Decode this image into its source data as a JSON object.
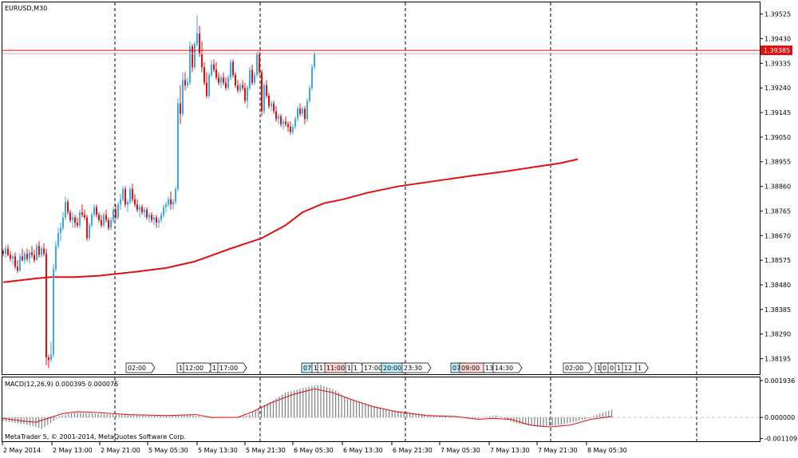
{
  "chart_data": [
    {
      "type": "candlestick",
      "symbol_label": "EURUSD,M30",
      "y_ticks": [
        "1.39525",
        "1.39430",
        "1.39335",
        "1.39240",
        "1.39145",
        "1.39050",
        "1.38955",
        "1.38860",
        "1.38765",
        "1.38670",
        "1.38575",
        "1.38480",
        "1.38385",
        "1.38290",
        "1.38195"
      ],
      "ylim": [
        1.38135,
        1.3957
      ],
      "current_price": "1.39385",
      "current_price_value": 1.39385,
      "colors": {
        "bull": "#3aa9e6",
        "bear": "#e01010",
        "ma": "#e01010",
        "price_line": "#e01010",
        "price_label_bg": "#e01010"
      },
      "session_marker_labels": [
        "02:00",
        "1",
        "12:00",
        "1",
        "17:00",
        "07",
        "1",
        "1",
        "11:00",
        "14",
        "1",
        "17:00",
        "20:00",
        "23:30",
        "07",
        "09:00",
        "13",
        "14:30",
        "02:00",
        "1",
        "0",
        "0",
        "1",
        "12",
        "1",
        "14:30"
      ],
      "candles": [
        [
          1.3861,
          1.3862,
          1.3859,
          1.386
        ],
        [
          1.386,
          1.3863,
          1.38585,
          1.3862
        ],
        [
          1.3862,
          1.38635,
          1.3859,
          1.38595
        ],
        [
          1.38595,
          1.3861,
          1.3857,
          1.3858
        ],
        [
          1.3858,
          1.386,
          1.38555,
          1.3859
        ],
        [
          1.3859,
          1.38605,
          1.3854,
          1.3855
        ],
        [
          1.3855,
          1.38575,
          1.38525,
          1.38535
        ],
        [
          1.38535,
          1.386,
          1.3853,
          1.3859
        ],
        [
          1.3859,
          1.3862,
          1.3857,
          1.38575
        ],
        [
          1.38575,
          1.3861,
          1.3856,
          1.386
        ],
        [
          1.386,
          1.3862,
          1.3857,
          1.3858
        ],
        [
          1.3858,
          1.38615,
          1.3856,
          1.38605
        ],
        [
          1.38605,
          1.3863,
          1.38585,
          1.38595
        ],
        [
          1.38595,
          1.38615,
          1.38565,
          1.38575
        ],
        [
          1.38575,
          1.3864,
          1.38575,
          1.3863
        ],
        [
          1.3863,
          1.3865,
          1.38585,
          1.38595
        ],
        [
          1.38595,
          1.3863,
          1.38585,
          1.3862
        ],
        [
          1.3862,
          1.3864,
          1.3859,
          1.386
        ],
        [
          1.386,
          1.3862,
          1.3817,
          1.382
        ],
        [
          1.382,
          1.3821,
          1.3816,
          1.3819
        ],
        [
          1.3819,
          1.3826,
          1.3818,
          1.3821
        ],
        [
          1.3821,
          1.3856,
          1.382,
          1.3854
        ],
        [
          1.3854,
          1.3865,
          1.3853,
          1.3863
        ],
        [
          1.3863,
          1.387,
          1.3862,
          1.3868
        ],
        [
          1.3868,
          1.3872,
          1.3865,
          1.387
        ],
        [
          1.387,
          1.3876,
          1.3869,
          1.3874
        ],
        [
          1.3874,
          1.3882,
          1.3873,
          1.388
        ],
        [
          1.388,
          1.3881,
          1.3875,
          1.3876
        ],
        [
          1.3876,
          1.3877,
          1.3872,
          1.3873
        ],
        [
          1.3873,
          1.3876,
          1.387,
          1.3874
        ],
        [
          1.3874,
          1.3875,
          1.387,
          1.3872
        ],
        [
          1.3872,
          1.3874,
          1.387,
          1.3871
        ],
        [
          1.3871,
          1.3877,
          1.387,
          1.3876
        ],
        [
          1.3876,
          1.3879,
          1.3874,
          1.3875
        ],
        [
          1.3875,
          1.3877,
          1.3873,
          1.3874
        ],
        [
          1.3874,
          1.3875,
          1.3865,
          1.3866
        ],
        [
          1.3866,
          1.3872,
          1.3865,
          1.3871
        ],
        [
          1.3871,
          1.3876,
          1.387,
          1.3875
        ],
        [
          1.3875,
          1.3879,
          1.3874,
          1.3878
        ],
        [
          1.3878,
          1.3879,
          1.3874,
          1.3875
        ],
        [
          1.3875,
          1.3876,
          1.3872,
          1.3873
        ],
        [
          1.3873,
          1.3875,
          1.387,
          1.3871
        ],
        [
          1.3871,
          1.3876,
          1.387,
          1.3875
        ],
        [
          1.3875,
          1.3877,
          1.3872,
          1.3873
        ],
        [
          1.3873,
          1.3874,
          1.3869,
          1.387
        ],
        [
          1.387,
          1.3874,
          1.3869,
          1.3873
        ],
        [
          1.3873,
          1.3878,
          1.3872,
          1.3877
        ],
        [
          1.3877,
          1.3879,
          1.3873,
          1.3874
        ],
        [
          1.3874,
          1.388,
          1.3873,
          1.3879
        ],
        [
          1.3879,
          1.3883,
          1.3877,
          1.3881
        ],
        [
          1.3881,
          1.3886,
          1.388,
          1.3885
        ],
        [
          1.3885,
          1.3886,
          1.3878,
          1.3879
        ],
        [
          1.3879,
          1.3881,
          1.3876,
          1.388
        ],
        [
          1.388,
          1.3886,
          1.3879,
          1.3885
        ],
        [
          1.3885,
          1.3887,
          1.388,
          1.3881
        ],
        [
          1.3881,
          1.3883,
          1.3878,
          1.3879
        ],
        [
          1.3879,
          1.3881,
          1.3876,
          1.3877
        ],
        [
          1.3877,
          1.3879,
          1.3874,
          1.3878
        ],
        [
          1.3878,
          1.3879,
          1.3875,
          1.3876
        ],
        [
          1.3876,
          1.3878,
          1.3874,
          1.3877
        ],
        [
          1.3877,
          1.3878,
          1.3873,
          1.3874
        ],
        [
          1.3874,
          1.3876,
          1.3872,
          1.3875
        ],
        [
          1.3875,
          1.3876,
          1.3872,
          1.3873
        ],
        [
          1.3873,
          1.3875,
          1.3871,
          1.3874
        ],
        [
          1.3874,
          1.3875,
          1.387,
          1.3872
        ],
        [
          1.3872,
          1.3874,
          1.387,
          1.3873
        ],
        [
          1.3873,
          1.3876,
          1.3872,
          1.3875
        ],
        [
          1.3875,
          1.3879,
          1.3874,
          1.3878
        ],
        [
          1.3878,
          1.388,
          1.3876,
          1.3879
        ],
        [
          1.3879,
          1.3882,
          1.3878,
          1.3881
        ],
        [
          1.3881,
          1.3884,
          1.3877,
          1.3879
        ],
        [
          1.3879,
          1.3881,
          1.3877,
          1.388
        ],
        [
          1.388,
          1.3886,
          1.3879,
          1.3885
        ],
        [
          1.3885,
          1.392,
          1.3884,
          1.3918
        ],
        [
          1.3918,
          1.3925,
          1.391,
          1.3914
        ],
        [
          1.3914,
          1.393,
          1.3913,
          1.3927
        ],
        [
          1.3927,
          1.393,
          1.3923,
          1.3925
        ],
        [
          1.3925,
          1.3928,
          1.3924,
          1.3926
        ],
        [
          1.3926,
          1.3942,
          1.3925,
          1.394
        ],
        [
          1.394,
          1.3941,
          1.393,
          1.3932
        ],
        [
          1.3932,
          1.3942,
          1.3931,
          1.3941
        ],
        [
          1.3941,
          1.3952,
          1.394,
          1.3945
        ],
        [
          1.3945,
          1.3948,
          1.3936,
          1.3937
        ],
        [
          1.3937,
          1.3942,
          1.393,
          1.3932
        ],
        [
          1.3932,
          1.3934,
          1.3925,
          1.3926
        ],
        [
          1.3926,
          1.393,
          1.392,
          1.3921
        ],
        [
          1.3921,
          1.393,
          1.392,
          1.3929
        ],
        [
          1.3929,
          1.3935,
          1.3928,
          1.3933
        ],
        [
          1.3933,
          1.3935,
          1.393,
          1.3931
        ],
        [
          1.3931,
          1.3934,
          1.3927,
          1.3928
        ],
        [
          1.3928,
          1.393,
          1.3925,
          1.3926
        ],
        [
          1.3926,
          1.3929,
          1.3924,
          1.3928
        ],
        [
          1.3928,
          1.393,
          1.3925,
          1.3926
        ],
        [
          1.3926,
          1.3928,
          1.3923,
          1.3924
        ],
        [
          1.3924,
          1.3929,
          1.3923,
          1.3928
        ],
        [
          1.3928,
          1.3935,
          1.3927,
          1.3934
        ],
        [
          1.3934,
          1.3935,
          1.3928,
          1.3929
        ],
        [
          1.3929,
          1.393,
          1.3924,
          1.3925
        ],
        [
          1.3925,
          1.3927,
          1.3922,
          1.3923
        ],
        [
          1.3923,
          1.3926,
          1.3922,
          1.3925
        ],
        [
          1.3925,
          1.3927,
          1.3923,
          1.3924
        ],
        [
          1.3924,
          1.3926,
          1.3918,
          1.3919
        ],
        [
          1.3919,
          1.3925,
          1.3916,
          1.3924
        ],
        [
          1.3924,
          1.3932,
          1.3923,
          1.3931
        ],
        [
          1.3931,
          1.3933,
          1.3925,
          1.3926
        ],
        [
          1.3926,
          1.393,
          1.3925,
          1.3929
        ],
        [
          1.3929,
          1.3938,
          1.3928,
          1.3937
        ],
        [
          1.3937,
          1.3938,
          1.3929,
          1.393
        ],
        [
          1.393,
          1.3931,
          1.3913,
          1.3915
        ],
        [
          1.3915,
          1.3926,
          1.3914,
          1.3925
        ],
        [
          1.3925,
          1.3927,
          1.392,
          1.3921
        ],
        [
          1.3921,
          1.3922,
          1.3916,
          1.3917
        ],
        [
          1.3917,
          1.3919,
          1.3915,
          1.3918
        ],
        [
          1.3918,
          1.3919,
          1.3914,
          1.3915
        ],
        [
          1.3915,
          1.3917,
          1.3911,
          1.3912
        ],
        [
          1.3912,
          1.3914,
          1.391,
          1.3913
        ],
        [
          1.3913,
          1.3914,
          1.3909,
          1.391
        ],
        [
          1.391,
          1.3912,
          1.3908,
          1.3911
        ],
        [
          1.3911,
          1.3913,
          1.3909,
          1.391
        ],
        [
          1.391,
          1.3911,
          1.3907,
          1.3909
        ],
        [
          1.3909,
          1.3911,
          1.3906,
          1.3907
        ],
        [
          1.3907,
          1.391,
          1.3906,
          1.3909
        ],
        [
          1.3909,
          1.3913,
          1.3908,
          1.3912
        ],
        [
          1.3912,
          1.3917,
          1.3911,
          1.3916
        ],
        [
          1.3916,
          1.3918,
          1.3913,
          1.3914
        ],
        [
          1.3914,
          1.3917,
          1.3913,
          1.3916
        ],
        [
          1.3916,
          1.3917,
          1.391,
          1.3912
        ],
        [
          1.3912,
          1.392,
          1.3911,
          1.3919
        ],
        [
          1.3919,
          1.3925,
          1.3918,
          1.3924
        ],
        [
          1.3924,
          1.3933,
          1.3923,
          1.3932
        ],
        [
          1.3932,
          1.3938,
          1.3931,
          1.3937
        ]
      ],
      "ma_points": [
        [
          0,
          1.3849
        ],
        [
          14,
          1.38505
        ],
        [
          20,
          1.3851
        ],
        [
          30,
          1.3851
        ],
        [
          40,
          1.38515
        ],
        [
          55,
          1.3853
        ],
        [
          68,
          1.38545
        ],
        [
          80,
          1.3857
        ],
        [
          95,
          1.3862
        ],
        [
          108,
          1.3866
        ],
        [
          118,
          1.3871
        ],
        [
          125,
          1.3876
        ],
        [
          134,
          1.38795
        ],
        [
          142,
          1.3881
        ],
        [
          152,
          1.38835
        ],
        [
          165,
          1.3886
        ],
        [
          180,
          1.3888
        ],
        [
          195,
          1.389
        ],
        [
          210,
          1.38918
        ],
        [
          222,
          1.38935
        ],
        [
          233,
          1.3895
        ],
        [
          240,
          1.38965
        ]
      ],
      "x_ticks": [
        "2 May 2014",
        "2 May 13:00",
        "2 May 21:00",
        "5 May 05:30",
        "5 May 13:30",
        "5 May 21:30",
        "6 May 05:30",
        "6 May 13:30",
        "6 May 21:30",
        "7 May 05:30",
        "7 May 13:30",
        "7 May 21:30",
        "8 May 05:30"
      ]
    },
    {
      "type": "macd",
      "label": "MACD(12,26,9) 0.000395 0.000075",
      "y_ticks": [
        "0.001936",
        "0.000000",
        "-0.001109"
      ],
      "ylim": [
        -0.00125,
        0.0021
      ],
      "colors": {
        "histogram": "#808080",
        "signal": "#e01010",
        "zero_line": "#c8c8c8"
      },
      "signal_points": [
        [
          0,
          -5e-05
        ],
        [
          14,
          -0.0002
        ],
        [
          22,
          -0.00025
        ],
        [
          30,
          -5e-05
        ],
        [
          40,
          0.0002
        ],
        [
          50,
          0.0003
        ],
        [
          65,
          0.00025
        ],
        [
          85,
          0.00015
        ],
        [
          110,
          0.0001
        ],
        [
          130,
          0.00015
        ],
        [
          140,
          0.0
        ],
        [
          158,
          0.0
        ],
        [
          168,
          0.0003
        ],
        [
          180,
          0.00075
        ],
        [
          195,
          0.0012
        ],
        [
          210,
          0.0015
        ],
        [
          222,
          0.0013
        ],
        [
          236,
          0.0009
        ],
        [
          250,
          0.00055
        ],
        [
          265,
          0.0003
        ],
        [
          285,
          0.0001
        ],
        [
          305,
          5e-05
        ],
        [
          320,
          -0.0001
        ],
        [
          330,
          -5e-05
        ],
        [
          342,
          -0.0001
        ],
        [
          355,
          -0.0004
        ],
        [
          368,
          -0.0005
        ],
        [
          382,
          -0.0004
        ],
        [
          396,
          -0.0001
        ],
        [
          410,
          5e-05
        ]
      ],
      "histogram_points": [
        [
          0,
          -0.0002
        ],
        [
          10,
          -0.0003
        ],
        [
          20,
          -0.00045
        ],
        [
          26,
          -0.0006
        ],
        [
          32,
          -0.0003
        ],
        [
          38,
          5e-05
        ],
        [
          44,
          0.0002
        ],
        [
          50,
          0.00025
        ],
        [
          60,
          0.0002
        ],
        [
          80,
          0.00015
        ],
        [
          100,
          0.0001
        ],
        [
          125,
          0.00015
        ],
        [
          140,
          -5e-05
        ],
        [
          155,
          0.0
        ],
        [
          165,
          0.0001
        ],
        [
          172,
          0.0005
        ],
        [
          180,
          0.0008
        ],
        [
          190,
          0.0013
        ],
        [
          200,
          0.0015
        ],
        [
          208,
          0.00165
        ],
        [
          214,
          0.0017
        ],
        [
          222,
          0.0015
        ],
        [
          232,
          0.001
        ],
        [
          245,
          0.0007
        ],
        [
          260,
          0.0004
        ],
        [
          280,
          0.0002
        ],
        [
          300,
          5e-05
        ],
        [
          318,
          -5e-05
        ],
        [
          332,
          0.0001
        ],
        [
          345,
          -0.0003
        ],
        [
          360,
          -0.0005
        ],
        [
          375,
          -0.0004
        ],
        [
          392,
          -0.0001
        ],
        [
          402,
          0.0002
        ],
        [
          410,
          0.0004
        ]
      ]
    }
  ],
  "footer": {
    "copyright": "MetaTrader 5, © 2001-2014, MetaQuotes Software Corp."
  }
}
